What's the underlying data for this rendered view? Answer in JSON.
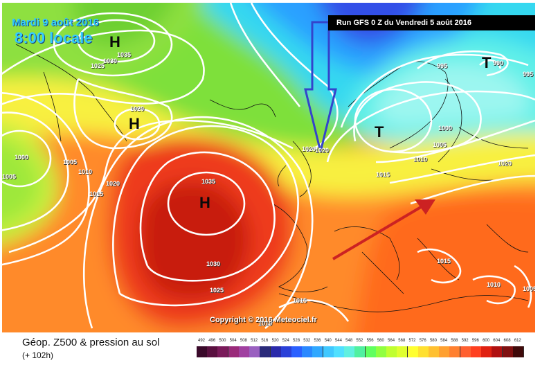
{
  "map": {
    "date": "Mardi 9 août 2016",
    "time": "8:00 locale",
    "run": "Run GFS 0 Z du Vendredi 5 août 2016",
    "copyright": "Copyright © 2016 Meteociel.fr",
    "centers": [
      {
        "kind": "high",
        "label": "H"
      },
      {
        "kind": "high",
        "label": "H"
      },
      {
        "kind": "high",
        "label": "H"
      },
      {
        "kind": "low",
        "label": "T"
      },
      {
        "kind": "low",
        "label": "T"
      }
    ],
    "isobar_labels": [
      "1035",
      "1030",
      "1025",
      "1020",
      "1020",
      "1000",
      "1005",
      "1010",
      "1015",
      "1005",
      "1020",
      "1035",
      "1030",
      "1025",
      "1015",
      "1010",
      "1020",
      "995",
      "990",
      "995",
      "1000",
      "1005",
      "1010",
      "1015",
      "1020",
      "1015",
      "1010",
      "1005"
    ],
    "arrows": [
      {
        "direction": "down",
        "color": "#3344cc"
      },
      {
        "direction": "up-right",
        "color": "#cc2222"
      }
    ]
  },
  "footer": {
    "title": "Géop. Z500 & pression au sol",
    "subtitle": "(+ 102h)"
  },
  "scale": {
    "values": [
      "492",
      "496",
      "500",
      "504",
      "508",
      "512",
      "516",
      "520",
      "524",
      "528",
      "532",
      "536",
      "540",
      "544",
      "548",
      "552",
      "556",
      "560",
      "564",
      "568",
      "572",
      "576",
      "580",
      "584",
      "588",
      "592",
      "596",
      "600",
      "604",
      "608",
      "612"
    ],
    "colors": [
      "#3a0a2a",
      "#5a1040",
      "#7a1a5a",
      "#9a2a7a",
      "#a040a0",
      "#9a60c0",
      "#2a2a7a",
      "#2a2aaa",
      "#2a40d8",
      "#2a60ff",
      "#2a88ff",
      "#30a8ff",
      "#40c8ff",
      "#50e0ff",
      "#60f0e0",
      "#50f0a0",
      "#60ff60",
      "#90ff40",
      "#c0ff30",
      "#e0ff30",
      "#ffff30",
      "#ffe030",
      "#ffc030",
      "#ffa030",
      "#ff8030",
      "#ff6030",
      "#ff4020",
      "#e02010",
      "#b01010",
      "#801010",
      "#400a0a"
    ]
  }
}
